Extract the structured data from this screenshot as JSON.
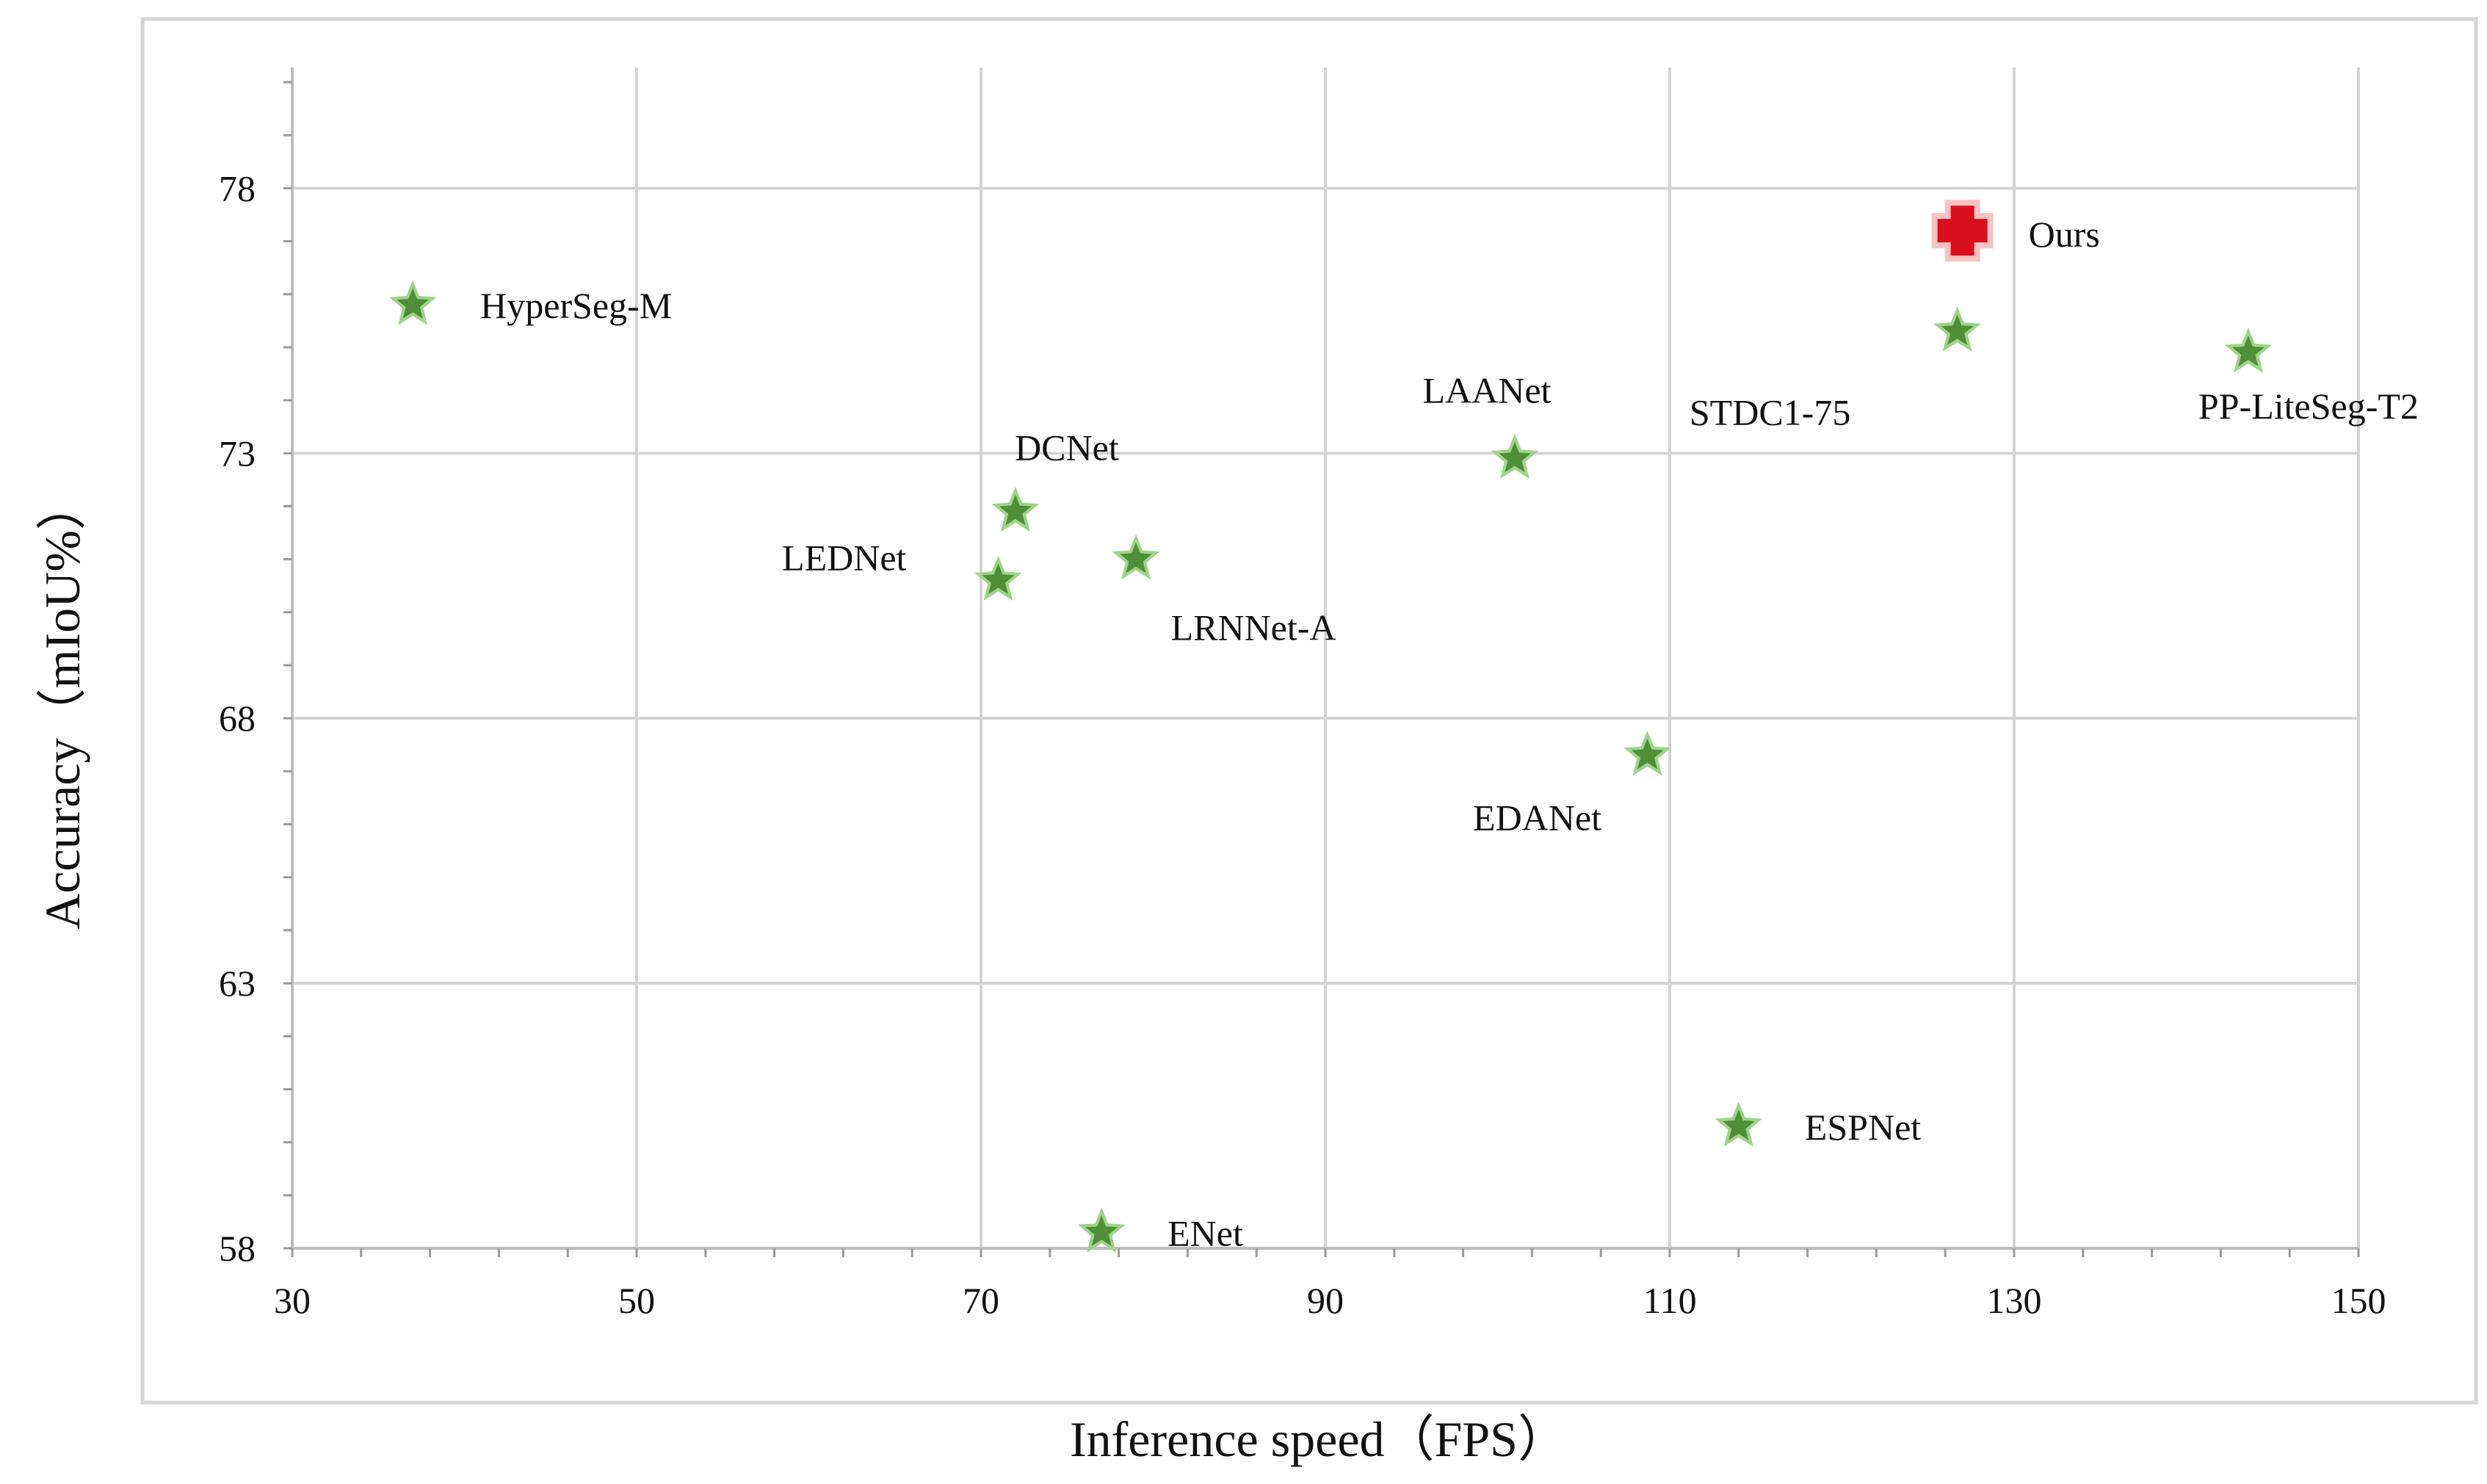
{
  "chart_data": {
    "type": "scatter",
    "title": "",
    "xlabel": "Inference speed（FPS）",
    "ylabel": "Accuracy（mIoU%）",
    "xlim": [
      30,
      150
    ],
    "ylim": [
      58,
      80
    ],
    "xticks": [
      30,
      50,
      70,
      90,
      110,
      130,
      150
    ],
    "yticks": [
      58,
      63,
      68,
      73,
      78
    ],
    "grid": true,
    "legend": "none",
    "colors": {
      "star": "#4e8f37",
      "star_glow": "#9fd38a",
      "ours": "#d9101c",
      "ours_glow": "#f07a7a",
      "grid": "#d4d4d4",
      "frame": "#d6d6d6"
    },
    "points": [
      {
        "label": "HyperSeg-M",
        "x": 37,
        "y": 75.8,
        "marker": "star"
      },
      {
        "label": "DCNet",
        "x": 72,
        "y": 71.9,
        "marker": "star"
      },
      {
        "label": "LEDNet",
        "x": 71,
        "y": 70.6,
        "marker": "star"
      },
      {
        "label": "LRNNet-A",
        "x": 79,
        "y": 71.0,
        "marker": "star"
      },
      {
        "label": "LAANet",
        "x": 101,
        "y": 72.9,
        "marker": "star"
      },
      {
        "label": "EDANet",
        "x": 108.7,
        "y": 67.3,
        "marker": "star"
      },
      {
        "label": "STDC1-75",
        "x": 126.7,
        "y": 75.3,
        "marker": "star"
      },
      {
        "label": "PP-LiteSeg-T2",
        "x": 143.6,
        "y": 74.9,
        "marker": "star"
      },
      {
        "label": "ESPNet",
        "x": 114,
        "y": 60.3,
        "marker": "star"
      },
      {
        "label": "ENet",
        "x": 77,
        "y": 58.3,
        "marker": "star"
      },
      {
        "label": "Ours",
        "x": 127,
        "y": 77.2,
        "marker": "cross"
      }
    ]
  }
}
